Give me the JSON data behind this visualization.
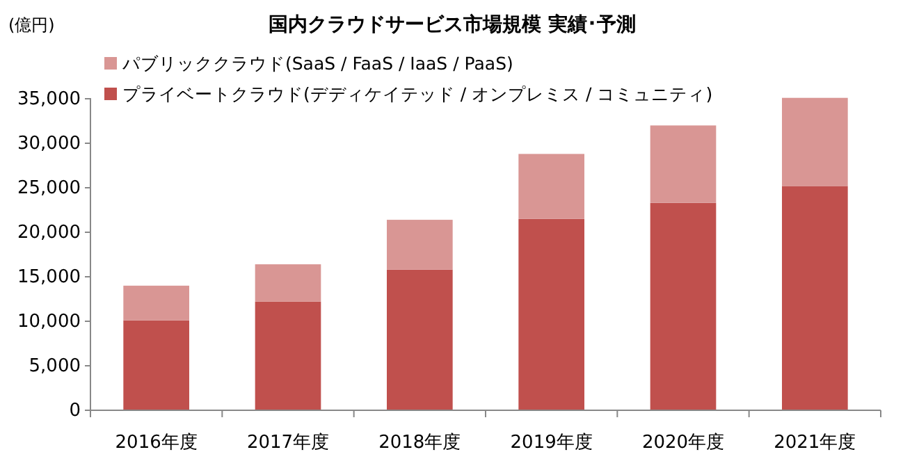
{
  "chart_data": {
    "type": "bar",
    "title": "国内クラウドサービス市場規模  実績･予測",
    "ylabel": "(億円)",
    "categories": [
      "2016年度",
      "2017年度",
      "2018年度",
      "2019年度",
      "2020年度",
      "2021年度"
    ],
    "stacked": true,
    "legend": "top left",
    "grid": false,
    "ylim": [
      0,
      35000
    ],
    "yticks": [
      {
        "value": 0,
        "label": "0"
      },
      {
        "value": 5000,
        "label": "5,000"
      },
      {
        "value": 10000,
        "label": "10,000"
      },
      {
        "value": 15000,
        "label": "15,000"
      },
      {
        "value": 20000,
        "label": "20,000"
      },
      {
        "value": 25000,
        "label": "25,000"
      },
      {
        "value": 30000,
        "label": "30,000"
      },
      {
        "value": 35000,
        "label": "35,000"
      }
    ],
    "series": [
      {
        "name": "プライベートクラウド(デディケイテッド  / オンプレミス / コミュニティ)",
        "color": "#c0504d",
        "values": [
          10100,
          12200,
          15800,
          21500,
          23300,
          25200
        ]
      },
      {
        "name": "パブリッククラウド(SaaS / FaaS / IaaS / PaaS)",
        "color": "#d99694",
        "values": [
          3900,
          4200,
          5600,
          7300,
          8700,
          9900
        ]
      }
    ]
  }
}
